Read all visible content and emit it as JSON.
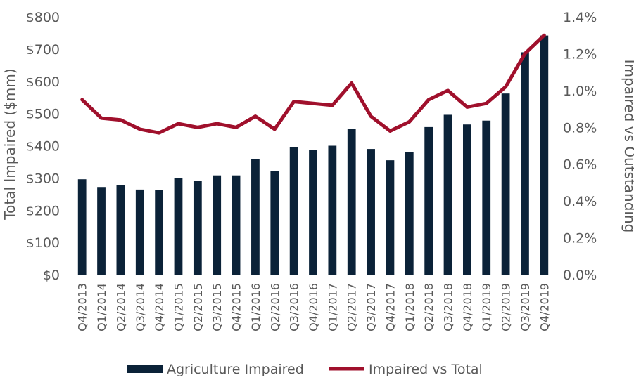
{
  "chart_data": {
    "type": "bar",
    "title": "",
    "categories": [
      "Q4/2013",
      "Q1/2014",
      "Q2/2014",
      "Q3/2014",
      "Q4/2014",
      "Q1/2015",
      "Q2/2015",
      "Q3/2015",
      "Q4/2015",
      "Q1/2016",
      "Q2/2016",
      "Q3/2016",
      "Q4/2016",
      "Q1/2017",
      "Q2/2017",
      "Q3/2017",
      "Q4/2017",
      "Q1/2018",
      "Q2/2018",
      "Q3/2018",
      "Q4/2018",
      "Q1/2019",
      "Q2/2019",
      "Q3/2019",
      "Q4/2019"
    ],
    "series": [
      {
        "name": "Agriculture Impaired",
        "type": "bar",
        "axis": "left",
        "color": "#0b2238",
        "values": [
          296,
          272,
          278,
          264,
          262,
          300,
          292,
          308,
          308,
          358,
          322,
          396,
          388,
          400,
          452,
          390,
          355,
          380,
          458,
          496,
          466,
          478,
          562,
          690,
          742
        ]
      },
      {
        "name": "Impaired vs Total",
        "type": "line",
        "axis": "right",
        "color": "#a0102c",
        "values": [
          0.95,
          0.85,
          0.84,
          0.79,
          0.77,
          0.82,
          0.8,
          0.82,
          0.8,
          0.86,
          0.79,
          0.94,
          0.93,
          0.92,
          1.04,
          0.86,
          0.78,
          0.83,
          0.95,
          1.0,
          0.91,
          0.93,
          1.02,
          1.2,
          1.3
        ]
      }
    ],
    "y_left": {
      "label": "Total Impaired ($mm)",
      "min": 0,
      "max": 800,
      "step": 100,
      "tick_labels": [
        "$0",
        "$100",
        "$200",
        "$300",
        "$400",
        "$500",
        "$600",
        "$700",
        "$800"
      ]
    },
    "y_right": {
      "label": "Impaired vs Outstanding",
      "min": 0,
      "max": 1.4,
      "step": 0.2,
      "tick_labels": [
        "0.0%",
        "0.2%",
        "0.4%",
        "0.6%",
        "0.8%",
        "1.0%",
        "1.2%",
        "1.4%"
      ]
    },
    "xlabel": "",
    "grid": false,
    "legend": {
      "placement": "bottom",
      "entries": [
        "Agriculture Impaired",
        "Impaired vs Total"
      ]
    }
  }
}
